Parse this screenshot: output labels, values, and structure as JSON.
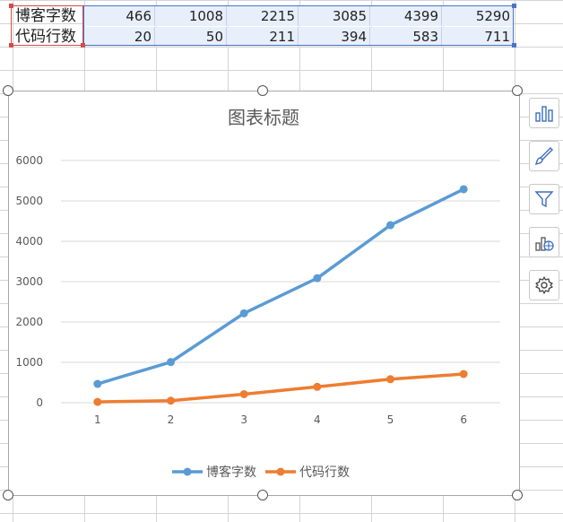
{
  "table": {
    "rows": [
      {
        "header": "博客字数",
        "values": [
          "466",
          "1008",
          "2215",
          "3085",
          "4399",
          "5290"
        ]
      },
      {
        "header": "代码行数",
        "values": [
          "20",
          "50",
          "211",
          "394",
          "583",
          "711"
        ]
      }
    ]
  },
  "side_buttons": [
    {
      "name": "chart-elements-icon"
    },
    {
      "name": "chart-style-icon"
    },
    {
      "name": "chart-filter-icon"
    },
    {
      "name": "chart-type-icon"
    },
    {
      "name": "chart-settings-icon"
    }
  ],
  "chart_data": {
    "type": "line",
    "title": "图表标题",
    "categories": [
      "1",
      "2",
      "3",
      "4",
      "5",
      "6"
    ],
    "series": [
      {
        "name": "博客字数",
        "color": "#5b9bd5",
        "values": [
          466,
          1008,
          2215,
          3085,
          4399,
          5290
        ]
      },
      {
        "name": "代码行数",
        "color": "#ed7d31",
        "values": [
          20,
          50,
          211,
          394,
          583,
          711
        ]
      }
    ],
    "ylim": [
      0,
      6000
    ],
    "yticks": [
      "0",
      "1000",
      "2000",
      "3000",
      "4000",
      "5000",
      "6000"
    ],
    "grid": true,
    "legend": "bottom"
  }
}
